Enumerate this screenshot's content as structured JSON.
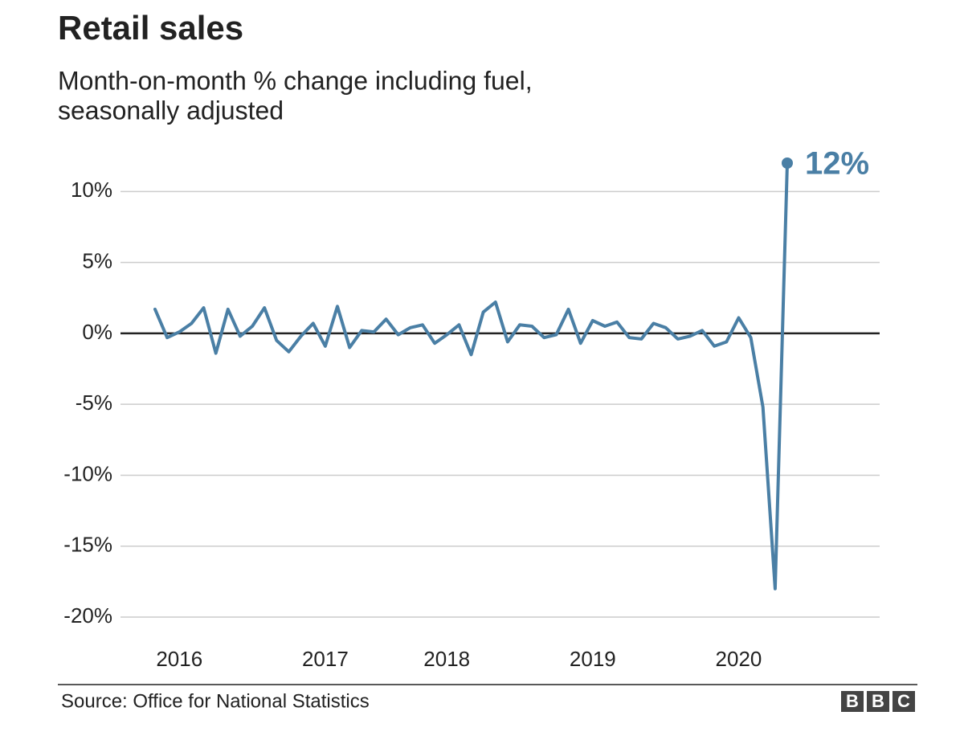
{
  "chart_data": {
    "type": "line",
    "title": "Retail sales",
    "subtitle": [
      "Month-on-month % change including fuel,",
      "seasonally adjusted"
    ],
    "categories": [
      null,
      null,
      "2016",
      null,
      null,
      null,
      null,
      null,
      null,
      null,
      null,
      null,
      null,
      null,
      "2017",
      null,
      null,
      null,
      null,
      null,
      null,
      null,
      null,
      null,
      "2018",
      null,
      null,
      null,
      null,
      null,
      null,
      null,
      null,
      null,
      null,
      null,
      "2019",
      null,
      null,
      null,
      null,
      null,
      null,
      null,
      null,
      null,
      null,
      null,
      "2020",
      null,
      null,
      null,
      null
    ],
    "values": [
      1.7,
      -0.3,
      0.1,
      0.7,
      1.8,
      -1.4,
      1.7,
      -0.2,
      0.5,
      1.8,
      -0.5,
      -1.3,
      -0.2,
      0.7,
      -0.9,
      1.9,
      -1.0,
      0.2,
      0.1,
      1.0,
      -0.1,
      0.4,
      0.6,
      -0.7,
      -0.1,
      0.6,
      -1.5,
      1.5,
      2.2,
      -0.6,
      0.6,
      0.5,
      -0.3,
      -0.1,
      1.7,
      -0.7,
      0.9,
      0.5,
      0.8,
      -0.3,
      -0.4,
      0.7,
      0.4,
      -0.4,
      -0.2,
      0.2,
      -0.9,
      -0.6,
      1.1,
      -0.3,
      -5.2,
      -18.0,
      12
    ],
    "value_labels": [
      null,
      null,
      null,
      null,
      null,
      null,
      null,
      null,
      null,
      null,
      null,
      null,
      null,
      null,
      null,
      null,
      null,
      null,
      null,
      null,
      null,
      null,
      null,
      null,
      null,
      null,
      null,
      null,
      null,
      null,
      null,
      null,
      null,
      null,
      null,
      null,
      null,
      null,
      null,
      null,
      null,
      null,
      null,
      null,
      null,
      null,
      null,
      null,
      null,
      null,
      null,
      null,
      "12%"
    ],
    "color": "#4a7fa5",
    "ylim": [
      -20,
      12
    ],
    "yticks": [
      {
        "value": -20,
        "label": "-20%"
      },
      {
        "value": -15,
        "label": "-15%"
      },
      {
        "value": -10,
        "label": "-10%"
      },
      {
        "value": -5,
        "label": "-5%"
      },
      {
        "value": 0,
        "label": "0%"
      },
      {
        "value": 5,
        "label": "5%"
      },
      {
        "value": 10,
        "label": "10%"
      }
    ],
    "grid": true,
    "source": "Source: Office for National Statistics",
    "logo": [
      "B",
      "B",
      "C"
    ]
  }
}
